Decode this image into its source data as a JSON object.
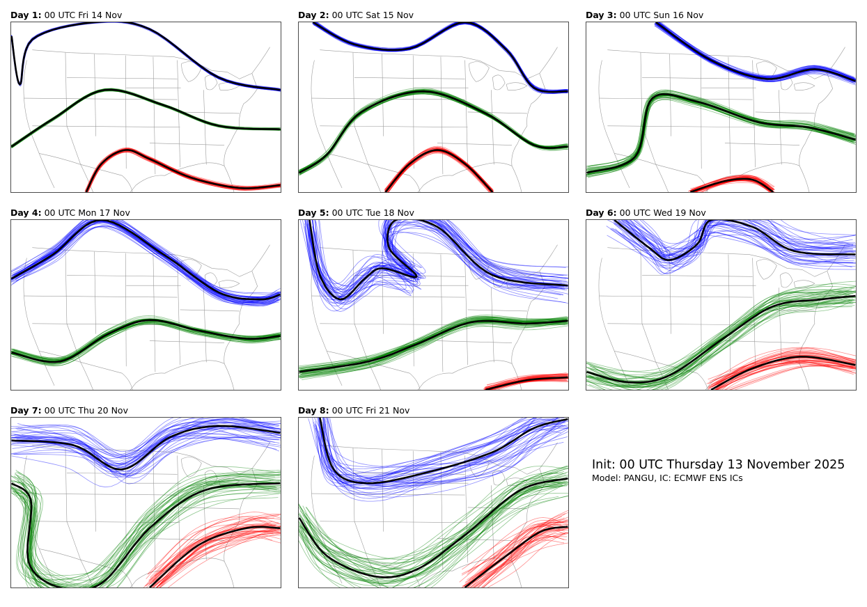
{
  "panels": [
    {
      "day": "Day 1",
      "time": "00 UTC Fri 14 Nov"
    },
    {
      "day": "Day 2",
      "time": "00 UTC Sat 15 Nov"
    },
    {
      "day": "Day 3",
      "time": "00 UTC Sun 16 Nov"
    },
    {
      "day": "Day 4",
      "time": "00 UTC Mon 17 Nov"
    },
    {
      "day": "Day 5",
      "time": "00 UTC Tue 18 Nov"
    },
    {
      "day": "Day 6",
      "time": "00 UTC Wed 19 Nov"
    },
    {
      "day": "Day 7",
      "time": "00 UTC Thu 20 Nov"
    },
    {
      "day": "Day 8",
      "time": "00 UTC Fri 21 Nov"
    }
  ],
  "info": {
    "init": "Init: 00 UTC Thursday 13 November 2025",
    "model": "Model: PANGU, IC: ECMWF ENS ICs"
  },
  "colors": {
    "north_contour": "#0000ff",
    "middle_contour": "#008000",
    "south_contour": "#ff0000",
    "ensemble_mean": "#000000",
    "map_lines": "#9a9a9a"
  }
}
